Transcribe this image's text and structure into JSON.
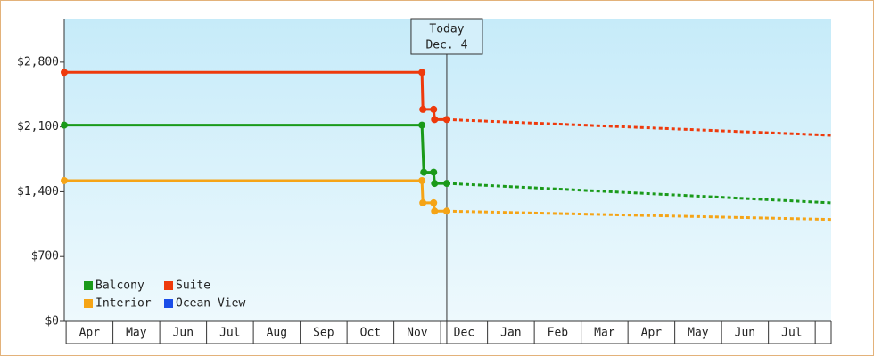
{
  "chart_data": {
    "type": "line",
    "xlim": [
      -0.04,
      16.34
    ],
    "ylim": [
      0,
      3270
    ],
    "xticks": [
      {
        "value": 0.5,
        "label": "Apr"
      },
      {
        "value": 1.5,
        "label": "May"
      },
      {
        "value": 2.5,
        "label": "Jun"
      },
      {
        "value": 3.5,
        "label": "Jul"
      },
      {
        "value": 4.5,
        "label": "Aug"
      },
      {
        "value": 5.5,
        "label": "Sep"
      },
      {
        "value": 6.5,
        "label": "Oct"
      },
      {
        "value": 7.5,
        "label": "Nov"
      },
      {
        "value": 8.5,
        "label": "Dec"
      },
      {
        "value": 9.5,
        "label": "Jan"
      },
      {
        "value": 10.5,
        "label": "Feb"
      },
      {
        "value": 11.5,
        "label": "Mar"
      },
      {
        "value": 12.5,
        "label": "Apr"
      },
      {
        "value": 13.5,
        "label": "May"
      },
      {
        "value": 14.5,
        "label": "Jun"
      },
      {
        "value": 15.5,
        "label": "Jul"
      }
    ],
    "yticks": [
      {
        "value": 0,
        "label": "$0"
      },
      {
        "value": 700,
        "label": "$700"
      },
      {
        "value": 1400,
        "label": "$1,400"
      },
      {
        "value": 2100,
        "label": "$2,100"
      },
      {
        "value": 2800,
        "label": "$2,800"
      }
    ],
    "today": {
      "x": 8.13,
      "label": "Today",
      "date": "Dec. 4"
    },
    "legend": "lower left",
    "series": [
      {
        "name": "Balcony",
        "color": "#1a9a1a",
        "x": [
          -0.04,
          7.6,
          7.64,
          7.85,
          7.87,
          8.13,
          16.34
        ],
        "values": [
          2120,
          2120,
          1610,
          1610,
          1490,
          1490,
          1280
        ]
      },
      {
        "name": "Suite",
        "color": "#ee3a0c",
        "x": [
          -0.04,
          7.6,
          7.62,
          7.85,
          7.87,
          8.13,
          16.34
        ],
        "values": [
          2690,
          2690,
          2290,
          2290,
          2180,
          2180,
          2010
        ]
      },
      {
        "name": "Interior",
        "color": "#f5a416",
        "x": [
          -0.04,
          7.6,
          7.62,
          7.85,
          7.87,
          8.13,
          16.34
        ],
        "values": [
          1520,
          1520,
          1280,
          1280,
          1190,
          1190,
          1100
        ]
      },
      {
        "name": "Ocean View",
        "color": "#1a4de8",
        "x": [],
        "values": []
      }
    ]
  }
}
